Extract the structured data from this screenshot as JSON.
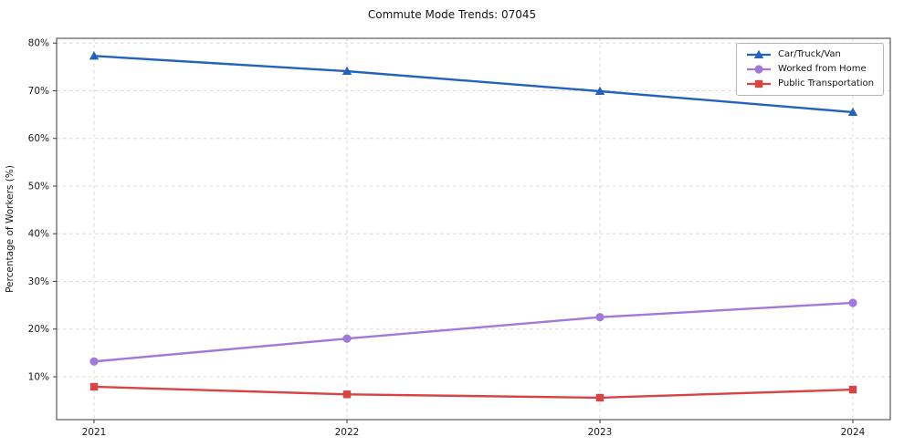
{
  "chart_data": {
    "type": "line",
    "title": "Commute Mode Trends: 07045",
    "xlabel": "",
    "ylabel": "Percentage of Workers (%)",
    "categories": [
      "2021",
      "2022",
      "2023",
      "2024"
    ],
    "series": [
      {
        "name": "Car/Truck/Van",
        "color": "#2362c0",
        "marker": "triangle",
        "values": [
          77.3,
          74.1,
          69.9,
          65.5
        ]
      },
      {
        "name": "Worked from Home",
        "color": "#a278d8",
        "marker": "circle",
        "values": [
          13.2,
          18.0,
          22.5,
          25.5
        ]
      },
      {
        "name": "Public Transportation",
        "color": "#d84343",
        "marker": "square",
        "values": [
          7.9,
          6.3,
          5.6,
          7.3
        ]
      }
    ],
    "ylim": [
      1,
      81
    ],
    "yticks": [
      10,
      20,
      30,
      40,
      50,
      60,
      70,
      80
    ],
    "ytick_labels": [
      "10%",
      "20%",
      "30%",
      "40%",
      "50%",
      "60%",
      "70%",
      "80%"
    ],
    "grid": true,
    "grid_style": "dashed",
    "grid_color": "#d9d9d9",
    "axis_color": "#3a3a3a",
    "background_color": "#ffffff",
    "legend_position": "upper right"
  }
}
